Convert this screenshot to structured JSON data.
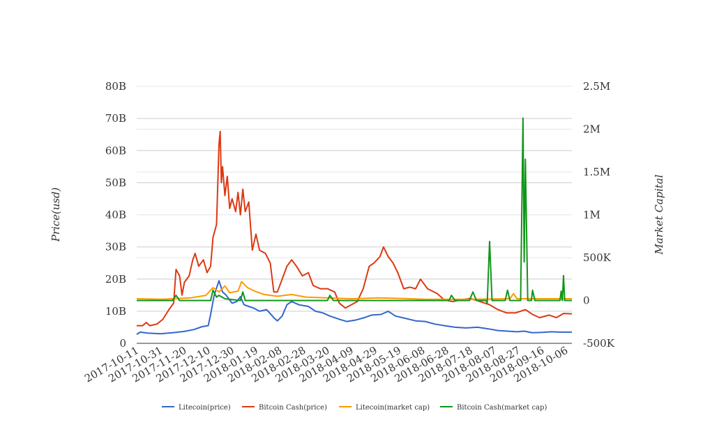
{
  "chart_data": {
    "type": "line",
    "title": "",
    "y_left": {
      "label": "Price(usd)",
      "range": [
        0,
        80000000000
      ],
      "ticks": [
        0,
        10000000000,
        20000000000,
        30000000000,
        40000000000,
        50000000000,
        60000000000,
        70000000000,
        80000000000
      ],
      "tick_labels": [
        "0",
        "10B",
        "20B",
        "30B",
        "40B",
        "50B",
        "60B",
        "70B",
        "80B"
      ]
    },
    "y_right": {
      "label": "Market Capital",
      "range": [
        -500000,
        2500000
      ],
      "ticks": [
        -500000,
        0,
        500000,
        1000000,
        1500000,
        2000000,
        2500000
      ],
      "tick_labels": [
        "-500K",
        "0",
        "500K",
        "1M",
        "1.5M",
        "2M",
        "2.5M"
      ]
    },
    "x_range": [
      "2017-10-11",
      "2018-10-11"
    ],
    "x_tick_labels": [
      "2017-10-11",
      "2017-10-31",
      "2017-11-20",
      "2017-12-10",
      "2017-12-30",
      "2018-01-19",
      "2018-02-08",
      "2018-02-28",
      "2018-03-20",
      "2018-04-09",
      "2018-04-29",
      "2018-05-19",
      "2018-06-08",
      "2018-06-28",
      "2018-07-18",
      "2018-08-07",
      "2018-08-27",
      "2018-09-16",
      "2018-10-06"
    ],
    "grid": true,
    "legend_position": "bottom",
    "series": [
      {
        "name": "Litecoin(price)",
        "axis": "left",
        "color": "#3366cc",
        "points": [
          [
            "2017-10-11",
            2.8
          ],
          [
            "2017-10-14",
            3.5
          ],
          [
            "2017-10-20",
            3.2
          ],
          [
            "2017-10-31",
            3.0
          ],
          [
            "2017-11-10",
            3.3
          ],
          [
            "2017-11-20",
            3.7
          ],
          [
            "2017-11-28",
            4.3
          ],
          [
            "2017-12-05",
            5.2
          ],
          [
            "2017-12-10",
            5.5
          ],
          [
            "2017-12-12",
            9.0
          ],
          [
            "2017-12-15",
            15.0
          ],
          [
            "2017-12-19",
            19.5
          ],
          [
            "2017-12-22",
            16.0
          ],
          [
            "2017-12-25",
            15.0
          ],
          [
            "2017-12-28",
            13.5
          ],
          [
            "2017-12-30",
            12.5
          ],
          [
            "2018-01-03",
            13.0
          ],
          [
            "2018-01-06",
            14.5
          ],
          [
            "2018-01-09",
            12.0
          ],
          [
            "2018-01-13",
            11.5
          ],
          [
            "2018-01-17",
            11.0
          ],
          [
            "2018-01-22",
            10.0
          ],
          [
            "2018-01-28",
            10.5
          ],
          [
            "2018-02-03",
            8.0
          ],
          [
            "2018-02-06",
            7.0
          ],
          [
            "2018-02-10",
            8.5
          ],
          [
            "2018-02-14",
            12.0
          ],
          [
            "2018-02-18",
            13.0
          ],
          [
            "2018-02-24",
            12.0
          ],
          [
            "2018-03-04",
            11.5
          ],
          [
            "2018-03-10",
            10.0
          ],
          [
            "2018-03-16",
            9.5
          ],
          [
            "2018-03-22",
            8.5
          ],
          [
            "2018-03-30",
            7.5
          ],
          [
            "2018-04-05",
            6.8
          ],
          [
            "2018-04-12",
            7.2
          ],
          [
            "2018-04-20",
            8.0
          ],
          [
            "2018-04-26",
            8.8
          ],
          [
            "2018-05-04",
            9.0
          ],
          [
            "2018-05-10",
            10.0
          ],
          [
            "2018-05-16",
            8.5
          ],
          [
            "2018-05-24",
            7.8
          ],
          [
            "2018-06-02",
            7.0
          ],
          [
            "2018-06-10",
            6.8
          ],
          [
            "2018-06-18",
            6.0
          ],
          [
            "2018-06-26",
            5.5
          ],
          [
            "2018-07-05",
            5.0
          ],
          [
            "2018-07-14",
            4.8
          ],
          [
            "2018-07-24",
            5.0
          ],
          [
            "2018-08-02",
            4.5
          ],
          [
            "2018-08-10",
            4.0
          ],
          [
            "2018-08-18",
            3.8
          ],
          [
            "2018-08-26",
            3.6
          ],
          [
            "2018-09-01",
            3.8
          ],
          [
            "2018-09-08",
            3.3
          ],
          [
            "2018-09-16",
            3.4
          ],
          [
            "2018-09-24",
            3.6
          ],
          [
            "2018-10-01",
            3.5
          ],
          [
            "2018-10-11",
            3.5
          ]
        ]
      },
      {
        "name": "Bitcoin Cash(price)",
        "axis": "left",
        "color": "#dc3912",
        "points": [
          [
            "2017-10-11",
            5.5
          ],
          [
            "2017-10-16",
            5.5
          ],
          [
            "2017-10-19",
            6.5
          ],
          [
            "2017-10-22",
            5.5
          ],
          [
            "2017-10-28",
            6.0
          ],
          [
            "2017-11-02",
            7.5
          ],
          [
            "2017-11-07",
            10.5
          ],
          [
            "2017-11-11",
            12.5
          ],
          [
            "2017-11-13",
            23.0
          ],
          [
            "2017-11-16",
            21.0
          ],
          [
            "2017-11-18",
            15.0
          ],
          [
            "2017-11-20",
            19.0
          ],
          [
            "2017-11-24",
            21.0
          ],
          [
            "2017-11-27",
            26.0
          ],
          [
            "2017-11-29",
            28.0
          ],
          [
            "2017-12-02",
            24.0
          ],
          [
            "2017-12-06",
            26.0
          ],
          [
            "2017-12-09",
            22.0
          ],
          [
            "2017-12-12",
            24.0
          ],
          [
            "2017-12-14",
            33.0
          ],
          [
            "2017-12-17",
            37.0
          ],
          [
            "2017-12-19",
            62.0
          ],
          [
            "2017-12-20",
            66.0
          ],
          [
            "2017-12-21",
            50.0
          ],
          [
            "2017-12-22",
            55.0
          ],
          [
            "2017-12-24",
            46.0
          ],
          [
            "2017-12-26",
            52.0
          ],
          [
            "2017-12-28",
            42.0
          ],
          [
            "2017-12-30",
            45.0
          ],
          [
            "2018-01-02",
            41.0
          ],
          [
            "2018-01-04",
            47.0
          ],
          [
            "2018-01-06",
            40.0
          ],
          [
            "2018-01-08",
            48.0
          ],
          [
            "2018-01-10",
            41.0
          ],
          [
            "2018-01-13",
            44.0
          ],
          [
            "2018-01-16",
            29.0
          ],
          [
            "2018-01-19",
            34.0
          ],
          [
            "2018-01-22",
            29.0
          ],
          [
            "2018-01-27",
            28.0
          ],
          [
            "2018-01-31",
            25.0
          ],
          [
            "2018-02-03",
            16.0
          ],
          [
            "2018-02-06",
            16.0
          ],
          [
            "2018-02-10",
            20.0
          ],
          [
            "2018-02-14",
            24.0
          ],
          [
            "2018-02-18",
            26.0
          ],
          [
            "2018-02-22",
            24.0
          ],
          [
            "2018-02-27",
            21.0
          ],
          [
            "2018-03-04",
            22.0
          ],
          [
            "2018-03-08",
            18.0
          ],
          [
            "2018-03-14",
            17.0
          ],
          [
            "2018-03-20",
            17.0
          ],
          [
            "2018-03-26",
            16.0
          ],
          [
            "2018-03-30",
            12.5
          ],
          [
            "2018-04-04",
            11.0
          ],
          [
            "2018-04-09",
            12.0
          ],
          [
            "2018-04-14",
            13.0
          ],
          [
            "2018-04-19",
            17.0
          ],
          [
            "2018-04-24",
            24.0
          ],
          [
            "2018-04-28",
            25.0
          ],
          [
            "2018-05-03",
            27.0
          ],
          [
            "2018-05-06",
            30.0
          ],
          [
            "2018-05-10",
            27.0
          ],
          [
            "2018-05-14",
            25.0
          ],
          [
            "2018-05-18",
            22.0
          ],
          [
            "2018-05-23",
            17.0
          ],
          [
            "2018-05-28",
            17.5
          ],
          [
            "2018-06-02",
            17.0
          ],
          [
            "2018-06-06",
            20.0
          ],
          [
            "2018-06-12",
            17.0
          ],
          [
            "2018-06-20",
            15.5
          ],
          [
            "2018-06-26",
            13.5
          ],
          [
            "2018-07-03",
            13.0
          ],
          [
            "2018-07-10",
            13.5
          ],
          [
            "2018-07-18",
            14.0
          ],
          [
            "2018-07-26",
            13.0
          ],
          [
            "2018-08-03",
            12.0
          ],
          [
            "2018-08-10",
            10.5
          ],
          [
            "2018-08-17",
            9.5
          ],
          [
            "2018-08-25",
            9.5
          ],
          [
            "2018-09-02",
            10.5
          ],
          [
            "2018-09-08",
            9.0
          ],
          [
            "2018-09-14",
            8.0
          ],
          [
            "2018-09-22",
            8.8
          ],
          [
            "2018-09-28",
            8.0
          ],
          [
            "2018-10-04",
            9.3
          ],
          [
            "2018-10-11",
            9.2
          ]
        ]
      },
      {
        "name": "Litecoin(market cap)",
        "axis": "right",
        "color": "#ff9900",
        "points": [
          [
            "2017-10-11",
            20000
          ],
          [
            "2017-11-01",
            15000
          ],
          [
            "2017-11-25",
            30000
          ],
          [
            "2017-12-08",
            60000
          ],
          [
            "2017-12-14",
            150000
          ],
          [
            "2017-12-19",
            100000
          ],
          [
            "2017-12-24",
            170000
          ],
          [
            "2017-12-28",
            90000
          ],
          [
            "2018-01-04",
            110000
          ],
          [
            "2018-01-07",
            220000
          ],
          [
            "2018-01-12",
            150000
          ],
          [
            "2018-01-18",
            110000
          ],
          [
            "2018-01-26",
            70000
          ],
          [
            "2018-02-06",
            50000
          ],
          [
            "2018-02-18",
            70000
          ],
          [
            "2018-03-02",
            40000
          ],
          [
            "2018-03-20",
            30000
          ],
          [
            "2018-04-09",
            20000
          ],
          [
            "2018-05-01",
            30000
          ],
          [
            "2018-05-18",
            25000
          ],
          [
            "2018-06-10",
            15000
          ],
          [
            "2018-07-18",
            15000
          ],
          [
            "2018-08-20",
            20000
          ],
          [
            "2018-08-23",
            80000
          ],
          [
            "2018-08-26",
            20000
          ],
          [
            "2018-10-11",
            20000
          ]
        ]
      },
      {
        "name": "Bitcoin Cash(market cap)",
        "axis": "right",
        "color": "#109618",
        "points": [
          [
            "2017-10-11",
            0
          ],
          [
            "2017-11-10",
            0
          ],
          [
            "2017-11-13",
            60000
          ],
          [
            "2017-11-16",
            0
          ],
          [
            "2017-12-12",
            0
          ],
          [
            "2017-12-14",
            120000
          ],
          [
            "2017-12-17",
            40000
          ],
          [
            "2017-12-19",
            60000
          ],
          [
            "2017-12-24",
            20000
          ],
          [
            "2018-01-06",
            0
          ],
          [
            "2018-01-08",
            100000
          ],
          [
            "2018-01-10",
            0
          ],
          [
            "2018-03-20",
            0
          ],
          [
            "2018-03-22",
            60000
          ],
          [
            "2018-03-25",
            0
          ],
          [
            "2018-06-30",
            0
          ],
          [
            "2018-07-02",
            60000
          ],
          [
            "2018-07-05",
            0
          ],
          [
            "2018-07-17",
            0
          ],
          [
            "2018-07-20",
            100000
          ],
          [
            "2018-07-23",
            0
          ],
          [
            "2018-07-31",
            0
          ],
          [
            "2018-08-01",
            -30000
          ],
          [
            "2018-08-03",
            690000
          ],
          [
            "2018-08-05",
            0
          ],
          [
            "2018-08-16",
            0
          ],
          [
            "2018-08-18",
            120000
          ],
          [
            "2018-08-20",
            0
          ],
          [
            "2018-08-29",
            0
          ],
          [
            "2018-08-31",
            2130000
          ],
          [
            "2018-09-01",
            450000
          ],
          [
            "2018-09-02",
            1650000
          ],
          [
            "2018-09-04",
            0
          ],
          [
            "2018-09-07",
            0
          ],
          [
            "2018-09-08",
            120000
          ],
          [
            "2018-09-10",
            0
          ],
          [
            "2018-10-01",
            0
          ],
          [
            "2018-10-02",
            110000
          ],
          [
            "2018-10-03",
            0
          ],
          [
            "2018-10-04",
            290000
          ],
          [
            "2018-10-05",
            0
          ],
          [
            "2018-10-11",
            0
          ]
        ]
      }
    ]
  }
}
